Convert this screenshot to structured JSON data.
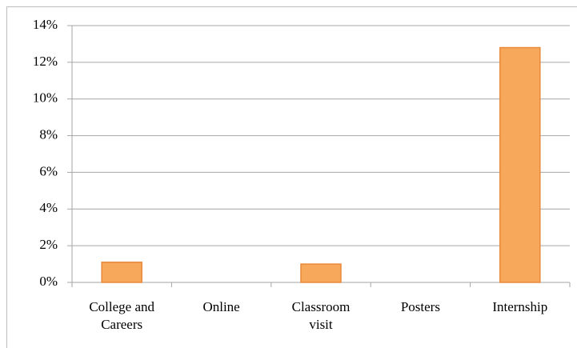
{
  "chart_data": {
    "type": "bar",
    "categories": [
      "College and Careers",
      "Online",
      "Classroom visit",
      "Posters",
      "Internship"
    ],
    "values": [
      1.1,
      0,
      1.0,
      0,
      12.8
    ],
    "color": "#f7a85b",
    "ylim": [
      0,
      14
    ],
    "yticks": [
      {
        "value": 0,
        "label": "0%"
      },
      {
        "value": 2,
        "label": "2%"
      },
      {
        "value": 4,
        "label": "4%"
      },
      {
        "value": 6,
        "label": "6%"
      },
      {
        "value": 8,
        "label": "8%"
      },
      {
        "value": 10,
        "label": "10%"
      },
      {
        "value": 12,
        "label": "12%"
      },
      {
        "value": 14,
        "label": "14%"
      }
    ],
    "grid": true
  }
}
